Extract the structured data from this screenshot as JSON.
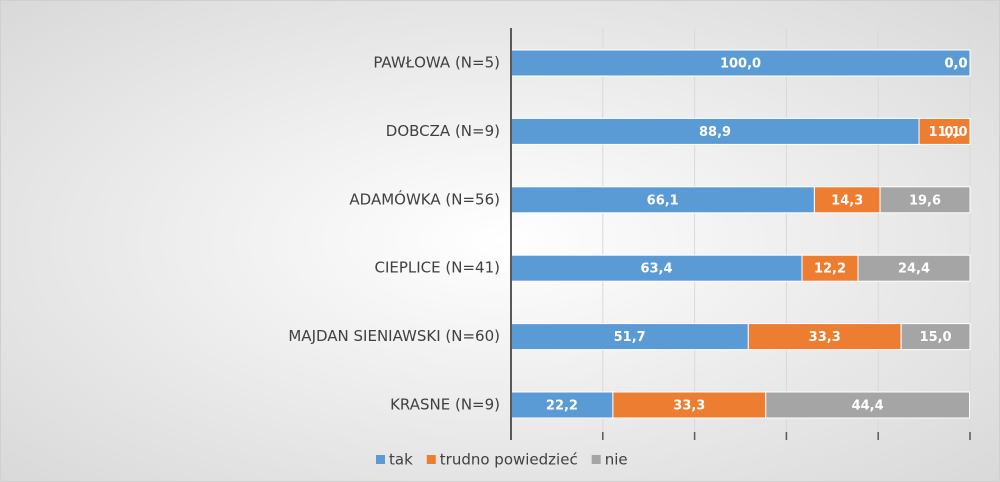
{
  "chart_data": {
    "type": "stacked-bar-horizontal",
    "categories": [
      "PAWŁOWA (N=5)",
      "DOBCZA (N=9)",
      "ADAMÓWKA (N=56)",
      "CIEPLICE (N=41)",
      "MAJDAN SIENIAWSKI (N=60)",
      "KRASNE (N=9)"
    ],
    "series": [
      {
        "name": "tak",
        "color": "#5b9bd5",
        "values": [
          100.0,
          88.9,
          66.1,
          63.4,
          51.7,
          22.2
        ],
        "value_labels": [
          "100,0",
          "88,9",
          "66,1",
          "63,4",
          "51,7",
          "22,2"
        ]
      },
      {
        "name": "trudno powiedzieć",
        "color": "#ed7d31",
        "values": [
          0.0,
          11.1,
          14.3,
          12.2,
          33.3,
          33.3
        ],
        "value_labels": [
          "0,0",
          "11,1",
          "14,3",
          "12,2",
          "33,3",
          "33,3"
        ]
      },
      {
        "name": "nie",
        "color": "#a5a5a5",
        "values": [
          0.0,
          0.0,
          19.6,
          24.4,
          15.0,
          44.4
        ],
        "value_labels": [
          "0,0",
          "0,0",
          "19,6",
          "24,4",
          "15,0",
          "44,4"
        ]
      }
    ],
    "xlim": [
      0,
      100
    ],
    "xticks": [
      0,
      20,
      40,
      60,
      80,
      100
    ],
    "grid": true,
    "legend": "bottom"
  }
}
